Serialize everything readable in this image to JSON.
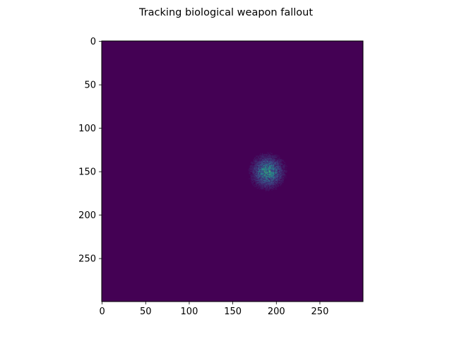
{
  "chart_data": {
    "type": "heatmap",
    "title": "Tracking biological weapon fallout",
    "xlabel": "",
    "ylabel": "",
    "width": 300,
    "height": 300,
    "xlim": [
      0,
      300
    ],
    "ylim": [
      300,
      0
    ],
    "x_ticks": [
      0,
      50,
      100,
      150,
      200,
      250
    ],
    "y_ticks": [
      0,
      50,
      100,
      150,
      200,
      250
    ],
    "colormap": "viridis",
    "background_value": 0,
    "hotspot": {
      "center_x": 190,
      "center_y": 150,
      "spread": 10,
      "peak_intensity": 0.55
    },
    "colors": {
      "background": "#440154",
      "axis": "#000000",
      "text": "#000000"
    }
  }
}
